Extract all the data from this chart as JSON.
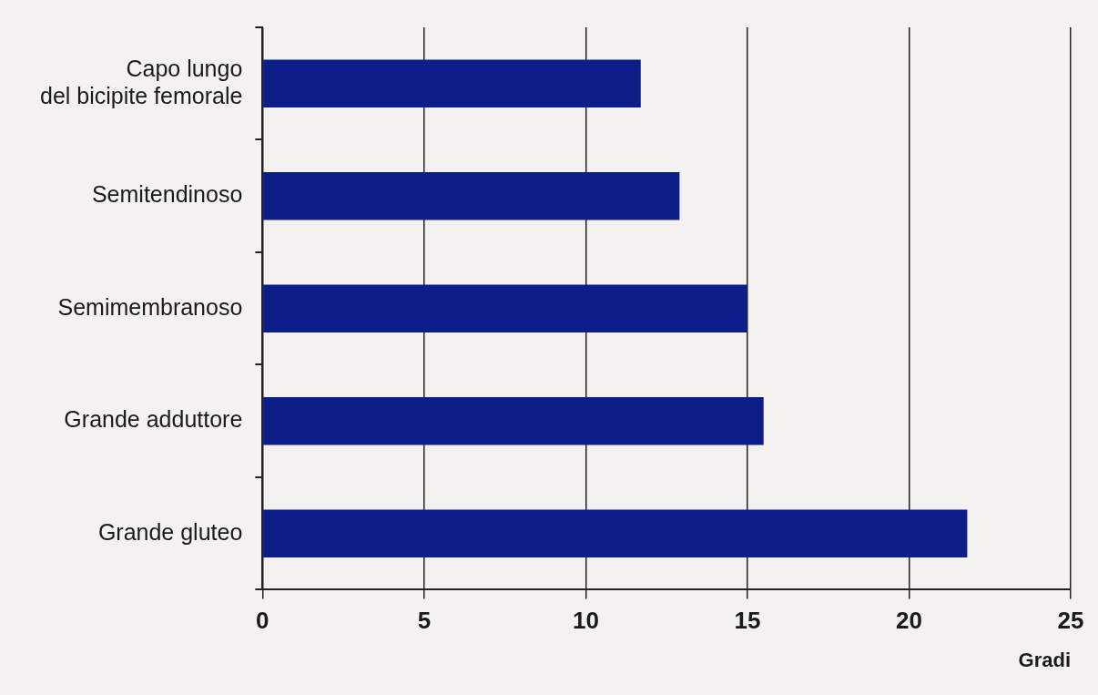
{
  "chart_data": {
    "type": "bar",
    "orientation": "horizontal",
    "categories": [
      "Capo lungo\ndel bicipite femorale",
      "Semitendinoso",
      "Semimembranoso",
      "Grande adduttore",
      "Grande gluteo"
    ],
    "values": [
      11.7,
      12.9,
      15.0,
      15.5,
      21.8
    ],
    "color": "#0c1d8a",
    "xlim": [
      0,
      25
    ],
    "xticks": [
      0,
      5,
      10,
      15,
      20,
      25
    ],
    "xlabel": "Gradi",
    "grid": "x"
  }
}
